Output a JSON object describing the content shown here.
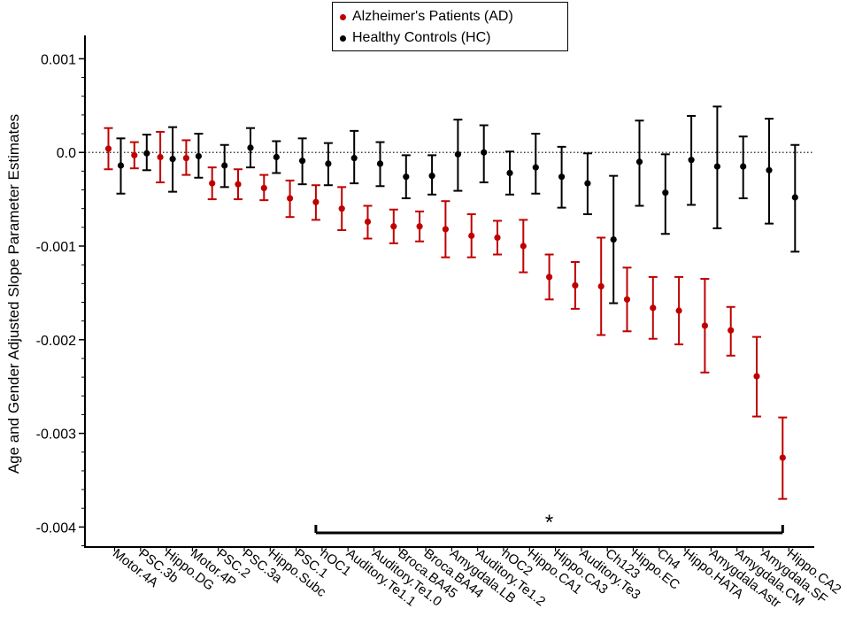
{
  "chart_data": {
    "type": "scatter",
    "title": "",
    "xlabel": "",
    "ylabel": "Age and Gender Adjusted Slope Parameter Estimates",
    "ylim": [
      -0.0042,
      0.0012
    ],
    "yticks": [
      0.001,
      0.0,
      -0.001,
      -0.002,
      -0.003,
      -0.004
    ],
    "ytick_labels": [
      "0.001",
      "0.0",
      "-0.001",
      "-0.002",
      "-0.003",
      "-0.004"
    ],
    "reference_line": 0.0,
    "categories": [
      "Motor.4A",
      "PSC.3b",
      "Hippo.DG",
      "Motor.4P",
      "PSC.2",
      "PSC.3a",
      "Hippo.Subc",
      "PSC.1",
      "hOC1",
      "Auditory.Te1.1",
      "Auditory.Te1.0",
      "Broca.BA45",
      "Broca.BA44",
      "Amygdala.LB",
      "Auditory.Te1.2",
      "hOC2",
      "Hippo.CA1",
      "Hippo.CA3",
      "Auditory.Te3",
      "Ch123",
      "Hippo.EC",
      "Ch4",
      "Hippo.HATA",
      "Amygdala.Astr",
      "Amygdala.CM",
      "Amygdala.SF",
      "Hippo.CA2"
    ],
    "series": [
      {
        "name": "Alzheimer's Patients (AD)",
        "color": "#c00000",
        "values": [
          4e-05,
          -3e-05,
          -5e-05,
          -6e-05,
          -0.00033,
          -0.00034,
          -0.00038,
          -0.00049,
          -0.00053,
          -0.0006,
          -0.00074,
          -0.00079,
          -0.00079,
          -0.00082,
          -0.00089,
          -0.00091,
          -0.001,
          -0.00133,
          -0.00142,
          -0.00143,
          -0.00157,
          -0.00166,
          -0.00169,
          -0.00185,
          -0.0019,
          -0.00239,
          -0.00326
        ],
        "lower": [
          -0.00018,
          -0.00017,
          -0.00032,
          -0.00024,
          -0.0005,
          -0.0005,
          -0.00051,
          -0.00069,
          -0.00072,
          -0.00083,
          -0.00092,
          -0.00097,
          -0.00095,
          -0.00112,
          -0.00112,
          -0.00109,
          -0.00128,
          -0.00157,
          -0.00167,
          -0.00195,
          -0.00191,
          -0.00199,
          -0.00205,
          -0.00235,
          -0.00217,
          -0.00282,
          -0.0037
        ],
        "upper": [
          0.00026,
          0.00011,
          0.00022,
          0.00013,
          -0.00016,
          -0.00018,
          -0.00024,
          -0.0003,
          -0.00035,
          -0.00037,
          -0.00057,
          -0.00061,
          -0.00063,
          -0.00052,
          -0.00066,
          -0.00073,
          -0.00072,
          -0.00109,
          -0.00117,
          -0.00091,
          -0.00123,
          -0.00133,
          -0.00133,
          -0.00135,
          -0.00165,
          -0.00197,
          -0.00283
        ]
      },
      {
        "name": "Healthy Controls (HC)",
        "color": "#000000",
        "values": [
          -0.00014,
          -1e-05,
          -7e-05,
          -4e-05,
          -0.00014,
          5e-05,
          -5e-05,
          -9e-05,
          -0.00012,
          -6e-05,
          -0.00012,
          -0.00026,
          -0.00025,
          -2e-05,
          0.0,
          -0.00022,
          -0.00016,
          -0.00026,
          -0.00033,
          -0.00093,
          -0.0001,
          -0.00043,
          -8e-05,
          -0.00015,
          -0.00015,
          -0.00019,
          -0.00048
        ],
        "lower": [
          -0.00044,
          -0.00019,
          -0.00042,
          -0.00027,
          -0.00037,
          -0.00016,
          -0.00022,
          -0.00034,
          -0.00035,
          -0.00033,
          -0.00036,
          -0.00049,
          -0.00045,
          -0.00041,
          -0.00032,
          -0.00045,
          -0.00044,
          -0.00059,
          -0.00066,
          -0.00161,
          -0.00057,
          -0.00087,
          -0.00056,
          -0.00081,
          -0.00049,
          -0.00076,
          -0.00106
        ],
        "upper": [
          0.00015,
          0.00019,
          0.00027,
          0.0002,
          8e-05,
          0.00026,
          0.00012,
          0.00015,
          0.0001,
          0.00023,
          0.00011,
          -3e-05,
          -3e-05,
          0.00035,
          0.00029,
          1e-05,
          0.0002,
          6e-05,
          -1e-05,
          -0.00025,
          0.00034,
          -2e-05,
          0.00039,
          0.00049,
          0.00017,
          0.00036,
          8e-05
        ]
      }
    ],
    "annotations": [
      {
        "text": "*",
        "bracket_from": "hOC1",
        "bracket_to": "Hippo.CA2"
      }
    ],
    "legend_position": "top-center"
  },
  "legend": {
    "items": [
      {
        "label": "Alzheimer's Patients (AD)",
        "color": "#c00000"
      },
      {
        "label": "Healthy Controls (HC)",
        "color": "#000000"
      }
    ]
  }
}
